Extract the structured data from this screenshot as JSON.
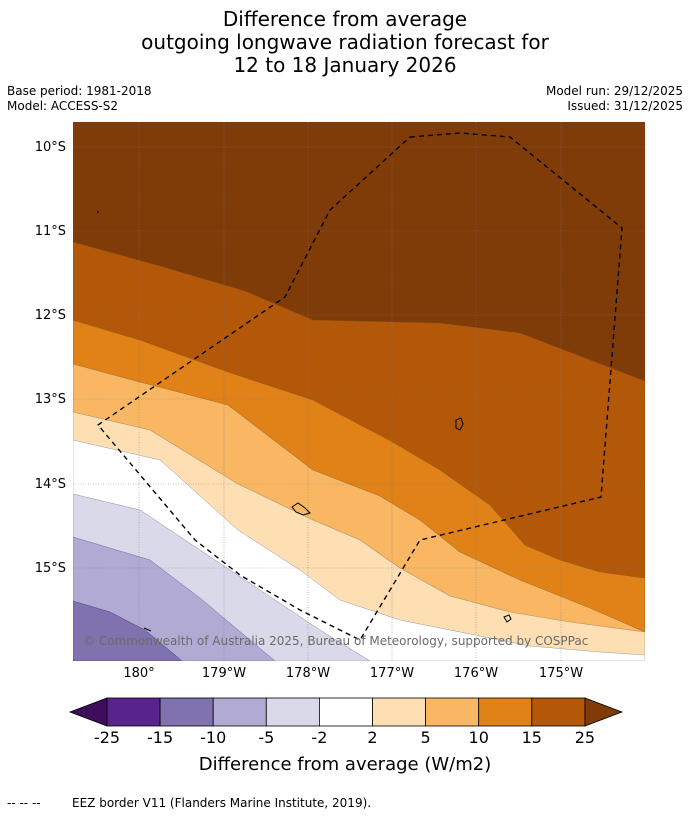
{
  "header": {
    "title_line1": "Difference from average",
    "title_line2": "outgoing longwave radiation forecast for",
    "title_line3": "12 to 18 January 2026",
    "base_period": "Base period: 1981-2018",
    "model": "Model: ACCESS-S2",
    "model_run": "Model run: 29/12/2025",
    "issued": "Issued: 31/12/2025"
  },
  "map": {
    "lat_labels": [
      "10°S",
      "11°S",
      "12°S",
      "13°S",
      "14°S",
      "15°S"
    ],
    "lon_labels": [
      "180°",
      "179°W",
      "178°W",
      "177°W",
      "176°W",
      "175°W"
    ],
    "copyright": "© Commonwealth of Australia 2025, Bureau of Meteorology, supported by COSPPac",
    "eez_border": "EEZ boundary (dashed)"
  },
  "colorbar": {
    "ticks": [
      "-25",
      "-15",
      "-10",
      "-5",
      "-2",
      "2",
      "5",
      "10",
      "15",
      "25"
    ],
    "label": "Difference from average (W/m2)",
    "colors": [
      "#3f0d5c",
      "#59238c",
      "#8072ae",
      "#b1abd3",
      "#d9d9ea",
      "#ffffff",
      "#fedfb4",
      "#f9b663",
      "#e08218",
      "#b35808",
      "#7f3b08"
    ]
  },
  "footer": {
    "legend_symbol": "--  --  --",
    "legend_text": "EEZ border V11 (Flanders Marine Institute, 2019)."
  }
}
